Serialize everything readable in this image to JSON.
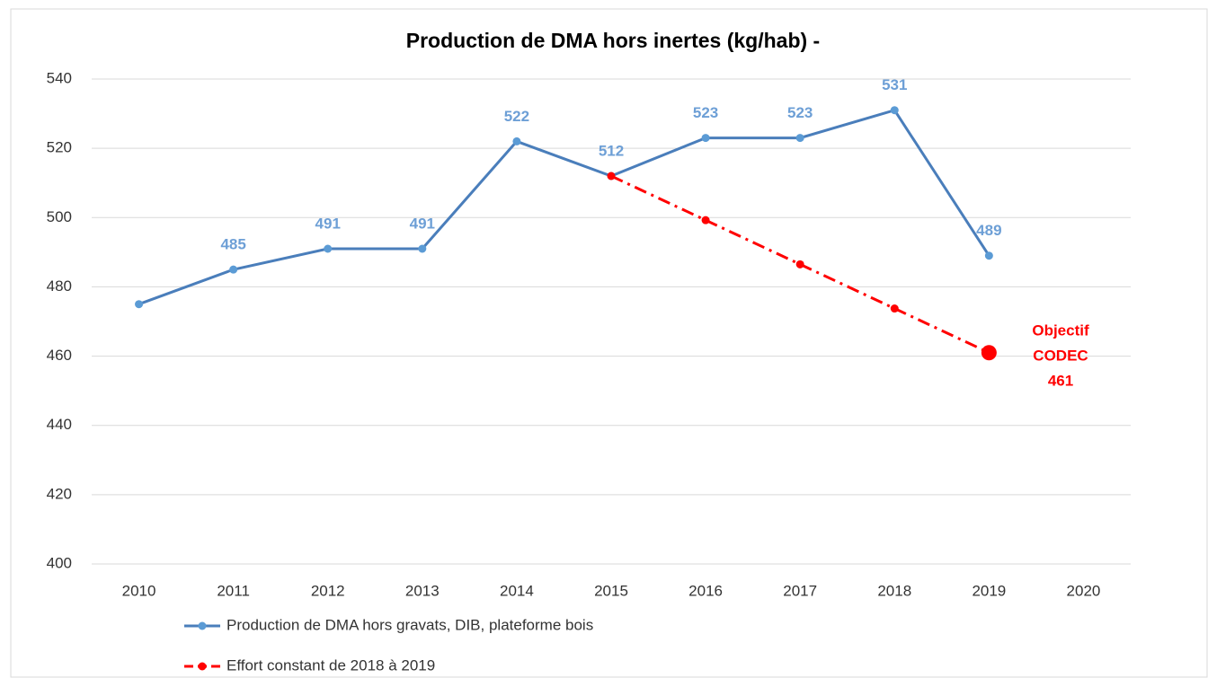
{
  "chart_data": {
    "type": "line",
    "title": "Production de DMA hors inertes (kg/hab) -",
    "categories": [
      "2010",
      "2011",
      "2012",
      "2013",
      "2014",
      "2015",
      "2016",
      "2017",
      "2018",
      "2019",
      "2020"
    ],
    "series": [
      {
        "name": "Production de DMA hors gravats, DIB, plateforme bois",
        "color": "#4a7ebb",
        "marker_color": "#5b9bd5",
        "label_color": "#6d9fd6",
        "dash": false,
        "values": [
          475,
          485,
          491,
          491,
          522,
          512,
          523,
          523,
          531,
          489,
          null
        ],
        "value_labels": [
          null,
          "485",
          "491",
          "491",
          "522",
          "512",
          "523",
          "523",
          "531",
          "489",
          null
        ]
      },
      {
        "name": "Effort constant de 2018 à 2019",
        "color": "#ff0000",
        "marker_color": "#ff0000",
        "dash": true,
        "values": [
          null,
          null,
          null,
          null,
          null,
          512,
          499.25,
          486.5,
          473.75,
          461,
          null
        ]
      }
    ],
    "annotation": {
      "lines": [
        "Objectif",
        "CODEC",
        "461"
      ],
      "color": "#ff0000"
    },
    "ylim": [
      400,
      540
    ],
    "yticks": [
      400,
      420,
      440,
      460,
      480,
      500,
      520,
      540
    ],
    "grid": true,
    "legend": "bottom-left"
  }
}
